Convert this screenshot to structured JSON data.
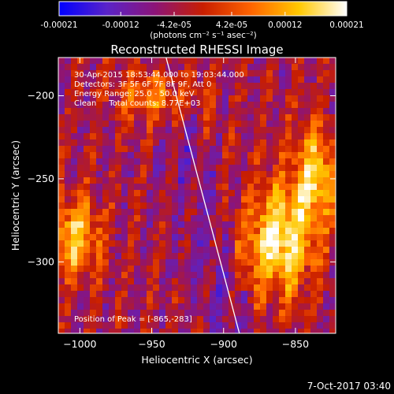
{
  "chart_data": {
    "type": "heatmap",
    "title": "Reconstructed RHESSI Image",
    "xlabel": "Heliocentric X (arcsec)",
    "ylabel": "Heliocentric Y (arcsec)",
    "xlim": [
      -1015,
      -822
    ],
    "ylim": [
      -343,
      -177
    ],
    "x_ticks": [
      -1000,
      -950,
      -900,
      -850
    ],
    "x_tick_labels": [
      "−1000",
      "−950",
      "−900",
      "−850"
    ],
    "y_ticks": [
      -200,
      -250,
      -300
    ],
    "y_tick_labels": [
      "−200",
      "−250",
      "−300"
    ],
    "colorbar": {
      "range": [
        -0.00021,
        0.00021
      ],
      "ticks": [
        -0.00021,
        -0.00012,
        -4.2e-05,
        4.2e-05,
        0.00012,
        0.00021
      ],
      "tick_labels": [
        "-0.00021",
        "-0.00012",
        "-4.2e-05",
        "4.2e-05",
        "0.00012",
        "0.00021"
      ],
      "units": "(photons cm⁻² s⁻¹ asec⁻²)",
      "colors": [
        "#0000ff",
        "#5a23c8",
        "#8c1478",
        "#c81e00",
        "#ff6400",
        "#ffc800",
        "#ffffff"
      ]
    },
    "annotations": [
      "30-Apr-2015 18:53:44.000 to 19:03:44.000",
      "Detectors: 3F 5F 6F 7F 8F 9F, Att 0",
      "Energy Range: 25.0 - 50.0 keV",
      "Clean     Total counts: 8.77E+03"
    ],
    "peak_label": "Position of Peak = [-865,-283]",
    "limb_line": {
      "x_top": -940,
      "y_top": -177,
      "x_bottom": -889,
      "y_bottom": -343
    },
    "timestamp": "7-Oct-2017 03:40"
  }
}
